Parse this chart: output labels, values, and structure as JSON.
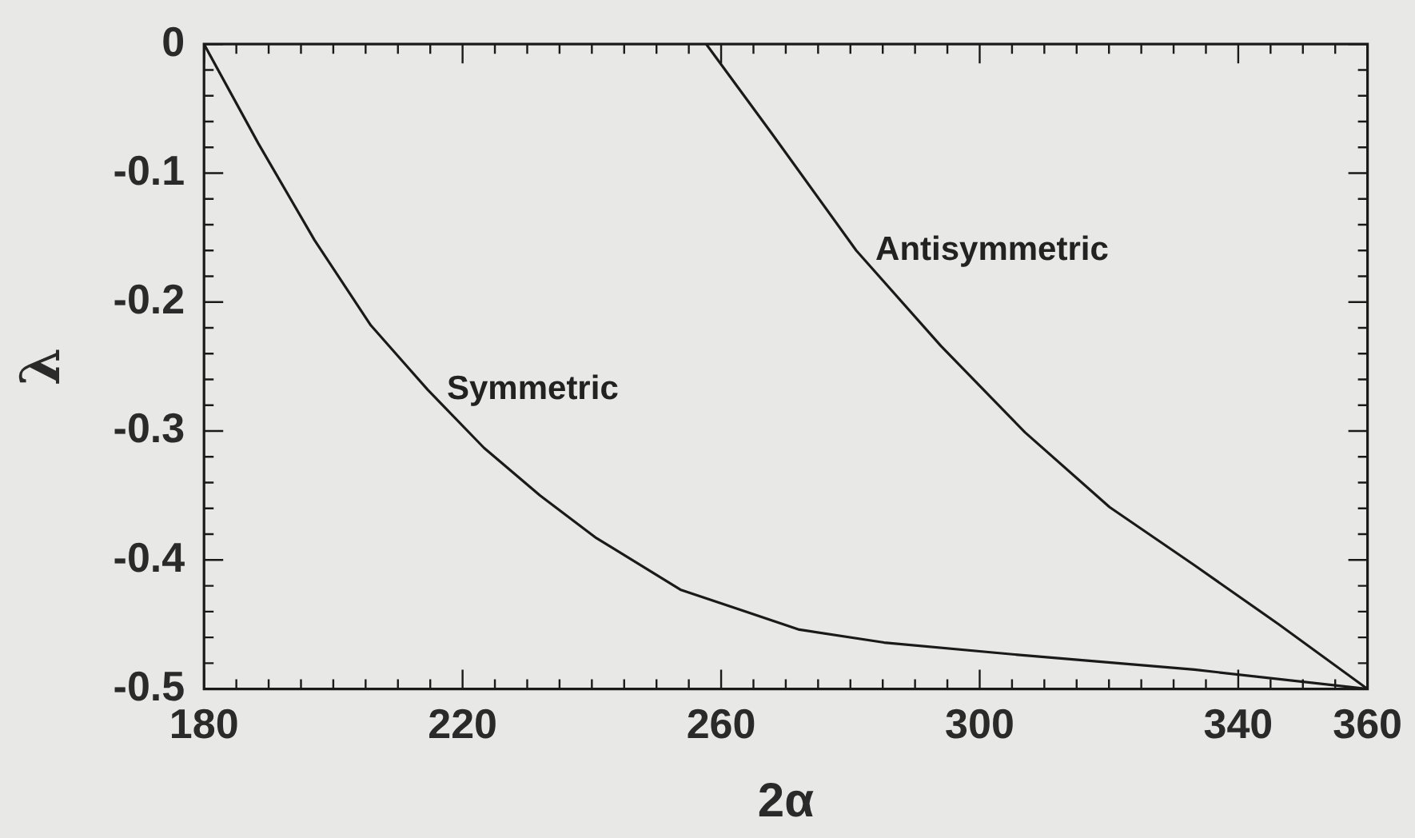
{
  "chart_data": {
    "type": "line",
    "xlabel": "2α",
    "ylabel": "λ",
    "xlim": [
      180,
      360
    ],
    "ylim": [
      -0.5,
      0
    ],
    "xticks": [
      180,
      {
        "value": 185,
        "label": null
      },
      {
        "value": 190,
        "label": null
      },
      {
        "value": 195,
        "label": null
      },
      {
        "value": 200,
        "label": null
      },
      {
        "value": 205,
        "label": null
      },
      {
        "value": 210,
        "label": null
      },
      {
        "value": 215,
        "label": null
      },
      220,
      {
        "value": 225,
        "label": null
      },
      {
        "value": 230,
        "label": null
      },
      {
        "value": 235,
        "label": null
      },
      {
        "value": 240,
        "label": null
      },
      {
        "value": 245,
        "label": null
      },
      {
        "value": 250,
        "label": null
      },
      {
        "value": 255,
        "label": null
      },
      260,
      {
        "value": 265,
        "label": null
      },
      {
        "value": 270,
        "label": null
      },
      {
        "value": 275,
        "label": null
      },
      {
        "value": 280,
        "label": null
      },
      {
        "value": 285,
        "label": null
      },
      {
        "value": 290,
        "label": null
      },
      {
        "value": 295,
        "label": null
      },
      300,
      {
        "value": 305,
        "label": null
      },
      {
        "value": 310,
        "label": null
      },
      {
        "value": 315,
        "label": null
      },
      {
        "value": 320,
        "label": null
      },
      {
        "value": 325,
        "label": null
      },
      {
        "value": 330,
        "label": null
      },
      {
        "value": 335,
        "label": null
      },
      340,
      {
        "value": 345,
        "label": null
      },
      {
        "value": 350,
        "label": null
      },
      {
        "value": 355,
        "label": null
      },
      360
    ],
    "yticks": [
      -0.5,
      {
        "value": -0.48,
        "label": null
      },
      {
        "value": -0.46,
        "label": null
      },
      {
        "value": -0.44,
        "label": null
      },
      {
        "value": -0.42,
        "label": null
      },
      -0.4,
      {
        "value": -0.38,
        "label": null
      },
      {
        "value": -0.36,
        "label": null
      },
      {
        "value": -0.34,
        "label": null
      },
      {
        "value": -0.32,
        "label": null
      },
      -0.3,
      {
        "value": -0.28,
        "label": null
      },
      {
        "value": -0.26,
        "label": null
      },
      {
        "value": -0.24,
        "label": null
      },
      {
        "value": -0.22,
        "label": null
      },
      -0.2,
      {
        "value": -0.18,
        "label": null
      },
      {
        "value": -0.16,
        "label": null
      },
      {
        "value": -0.14,
        "label": null
      },
      {
        "value": -0.12,
        "label": null
      },
      -0.1,
      {
        "value": -0.08,
        "label": null
      },
      {
        "value": -0.06,
        "label": null
      },
      {
        "value": -0.04,
        "label": null
      },
      {
        "value": -0.02,
        "label": null
      },
      0
    ],
    "series": [
      {
        "name": "Symmetric",
        "color": "#1a1a1a",
        "x": [
          180,
          188.4,
          197.1,
          205.8,
          214.6,
          223.3,
          232.0,
          240.7,
          253.7,
          272.1,
          285.2,
          307.0,
          333.2,
          360
        ],
        "values": [
          0,
          -0.077,
          -0.152,
          -0.218,
          -0.268,
          -0.313,
          -0.35,
          -0.383,
          -0.423,
          -0.454,
          -0.464,
          -0.474,
          -0.485,
          -0.5
        ]
      },
      {
        "name": "Antisymmetric",
        "color": "#1a1a1a",
        "x": [
          257.7,
          267.8,
          280.9,
          294.0,
          307.0,
          320.1,
          333.2,
          346.3,
          360
        ],
        "values": [
          0,
          -0.069,
          -0.16,
          -0.234,
          -0.301,
          -0.359,
          -0.404,
          -0.45,
          -0.5
        ]
      }
    ],
    "grid": false,
    "legend": false,
    "marker": "none",
    "line_style": "solid"
  }
}
